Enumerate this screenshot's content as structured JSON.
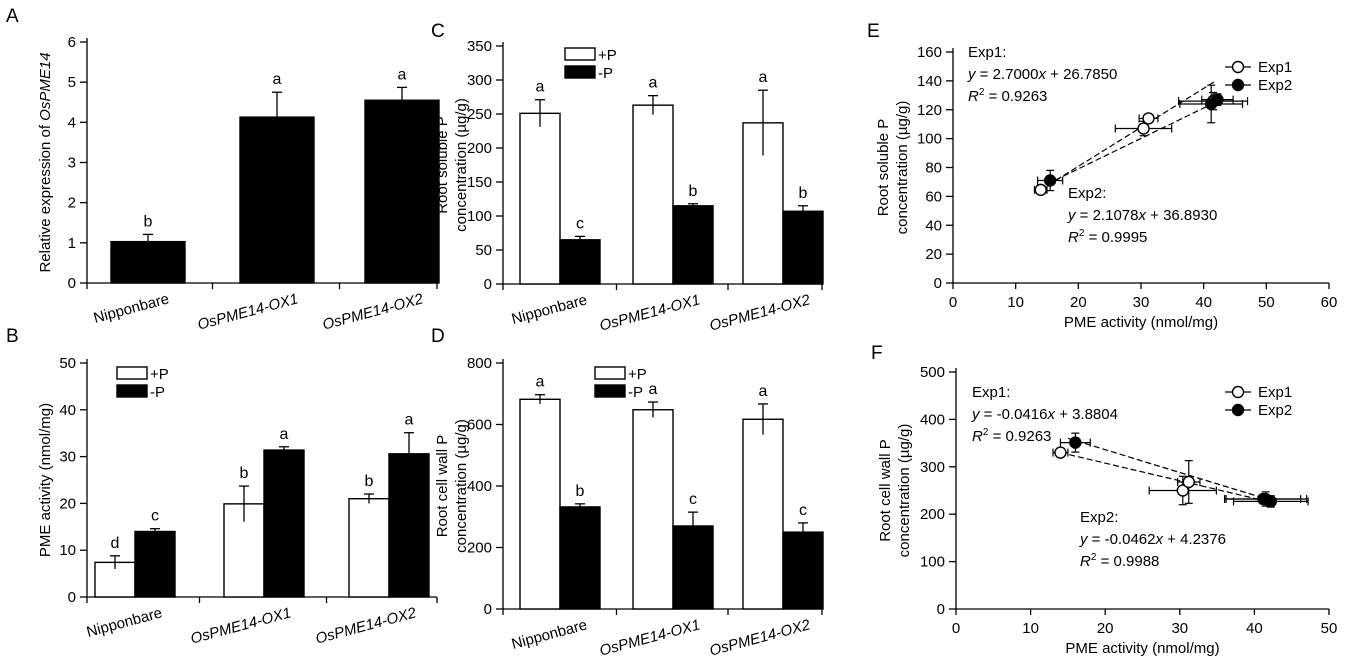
{
  "chart_data": [
    {
      "id": "A",
      "type": "bar",
      "panel_label": "A",
      "ylabel_prefix": "Relative expression of ",
      "ylabel_italic": "OsPME14",
      "categories": [
        "Nipponbare",
        "OsPME14-OX1",
        "OsPME14-OX2"
      ],
      "series": [
        {
          "values": [
            1.03,
            4.13,
            4.55
          ],
          "errors": [
            0.18,
            0.62,
            0.32
          ],
          "letters": [
            "b",
            "a",
            "a"
          ],
          "color": "#000000"
        }
      ],
      "yticks": [
        0,
        1,
        2,
        3,
        4,
        5,
        6
      ],
      "ylim": [
        0,
        6
      ]
    },
    {
      "id": "B",
      "type": "bar",
      "panel_label": "B",
      "ylabel": "PME activity (nmol/mg)",
      "categories": [
        "Nipponbare",
        "OsPME14-OX1",
        "OsPME14-OX2"
      ],
      "series": [
        {
          "name": "+P",
          "values": [
            7.4,
            19.9,
            21.0
          ],
          "errors": [
            1.4,
            3.8,
            1.0
          ],
          "letters": [
            "d",
            "b",
            "b"
          ],
          "color": "#ffffff"
        },
        {
          "name": "-P",
          "values": [
            14.0,
            31.4,
            30.6
          ],
          "errors": [
            0.6,
            0.7,
            4.5
          ],
          "letters": [
            "c",
            "a",
            "a"
          ],
          "color": "#000000"
        }
      ],
      "yticks": [
        0,
        10,
        20,
        30,
        40,
        50
      ],
      "ylim": [
        0,
        50
      ],
      "legend_position": "top-left"
    },
    {
      "id": "C",
      "type": "bar",
      "panel_label": "C",
      "ylabel_lines": [
        "Root soluble P",
        "concentration (µg/g)"
      ],
      "categories": [
        "Nipponbare",
        "OsPME14-OX1",
        "OsPME14-OX2"
      ],
      "series": [
        {
          "name": "+P",
          "values": [
            251,
            263,
            237
          ],
          "errors": [
            20,
            14,
            48
          ],
          "letters": [
            "a",
            "a",
            "a"
          ],
          "color": "#ffffff"
        },
        {
          "name": "-P",
          "values": [
            65,
            115,
            107
          ],
          "errors": [
            5,
            3,
            8
          ],
          "letters": [
            "c",
            "b",
            "b"
          ],
          "color": "#000000"
        }
      ],
      "yticks": [
        0,
        50,
        100,
        150,
        200,
        250,
        300,
        350
      ],
      "ylim": [
        0,
        350
      ],
      "legend_position": "top-left"
    },
    {
      "id": "D",
      "type": "bar",
      "panel_label": "D",
      "ylabel_lines": [
        "Root cell wall P",
        "concentration (µg/g)"
      ],
      "categories": [
        "Nipponbare",
        "OsPME14-OX1",
        "OsPME14-OX2"
      ],
      "series": [
        {
          "name": "+P",
          "values": [
            682,
            648,
            617
          ],
          "errors": [
            15,
            25,
            50
          ],
          "letters": [
            "a",
            "a",
            "a"
          ],
          "color": "#ffffff"
        },
        {
          "name": "-P",
          "values": [
            332,
            270,
            250
          ],
          "errors": [
            10,
            45,
            30
          ],
          "letters": [
            "b",
            "c",
            "c"
          ],
          "color": "#000000"
        }
      ],
      "yticks": [
        0,
        200,
        400,
        600,
        800
      ],
      "ylim": [
        0,
        800
      ],
      "legend_position": "top-right"
    },
    {
      "id": "E",
      "type": "scatter",
      "panel_label": "E",
      "xlabel": "PME activity (nmol/mg)",
      "ylabel_lines": [
        "Root soluble P",
        "concentration (µg/g)"
      ],
      "xlim": [
        0,
        60
      ],
      "ylim": [
        0,
        160
      ],
      "xticks": [
        0,
        10,
        20,
        30,
        40,
        50,
        60
      ],
      "yticks": [
        0,
        20,
        40,
        60,
        80,
        100,
        120,
        140,
        160
      ],
      "series": [
        {
          "name": "Exp1",
          "marker": "open",
          "points": [
            [
              14.0,
              64.5,
              1.0,
              3.0
            ],
            [
              30.4,
              107,
              4.5,
              5
            ],
            [
              31.2,
              114,
              1.5,
              3
            ],
            [
              41.5,
              126,
              5.5,
              6
            ]
          ],
          "fit": [
            [
              14.0,
              64.6
            ],
            [
              42.0,
              140.2
            ]
          ]
        },
        {
          "name": "Exp2",
          "marker": "filled",
          "points": [
            [
              15.5,
              71,
              2.0,
              7
            ],
            [
              41.2,
              124,
              5.0,
              13
            ],
            [
              42.2,
              127,
              2.5,
              4
            ]
          ],
          "fit": [
            [
              15.0,
              68.5
            ],
            [
              42.5,
              126.5
            ]
          ]
        }
      ],
      "annotations": [
        {
          "label": "Exp1:",
          "equation": "y = 2.7000x + 26.7850",
          "r2": "R2 = 0.9263",
          "r2_value": "= 0.9263"
        },
        {
          "label": "Exp2:",
          "equation": "y = 2.1078x + 36.8930",
          "r2": "R2 = 0.9995",
          "r2_value": "= 0.9995"
        }
      ],
      "legend_position": "top-right"
    },
    {
      "id": "F",
      "type": "scatter",
      "panel_label": "F",
      "xlabel": "PME activity (nmol/mg)",
      "ylabel_lines": [
        "Root cell wall P",
        "concentration (µg/g)"
      ],
      "xlim": [
        0,
        50
      ],
      "ylim": [
        0,
        500
      ],
      "xticks": [
        0,
        10,
        20,
        30,
        40,
        50
      ],
      "yticks": [
        0,
        100,
        200,
        300,
        400,
        500
      ],
      "series": [
        {
          "name": "Exp1",
          "marker": "open",
          "points": [
            [
              14.0,
              330,
              1.0,
              8
            ],
            [
              30.4,
              250,
              4.5,
              30
            ],
            [
              31.2,
              268,
              1.5,
              45
            ],
            [
              41.5,
              232,
              5.5,
              15
            ]
          ],
          "fit": [
            [
              14.0,
              330
            ],
            [
              42.0,
              226
            ]
          ]
        },
        {
          "name": "Exp2",
          "marker": "filled",
          "points": [
            [
              16.0,
              351,
              2.0,
              20
            ],
            [
              41.2,
              232,
              5.0,
              10
            ],
            [
              42.2,
              227,
              5.0,
              12
            ]
          ],
          "fit": [
            [
              15.0,
              360
            ],
            [
              42.5,
              228
            ]
          ]
        }
      ],
      "annotations": [
        {
          "label": "Exp1:",
          "equation": "y = -0.0416x + 3.8804",
          "r2": "R2 = 0.9263",
          "r2_value": "= 0.9263"
        },
        {
          "label": "Exp2:",
          "equation": "y = -0.0462x + 4.2376",
          "r2": "R2 = 0.9988",
          "r2_value": "= 0.9988"
        }
      ],
      "legend_position": "top-right"
    }
  ]
}
